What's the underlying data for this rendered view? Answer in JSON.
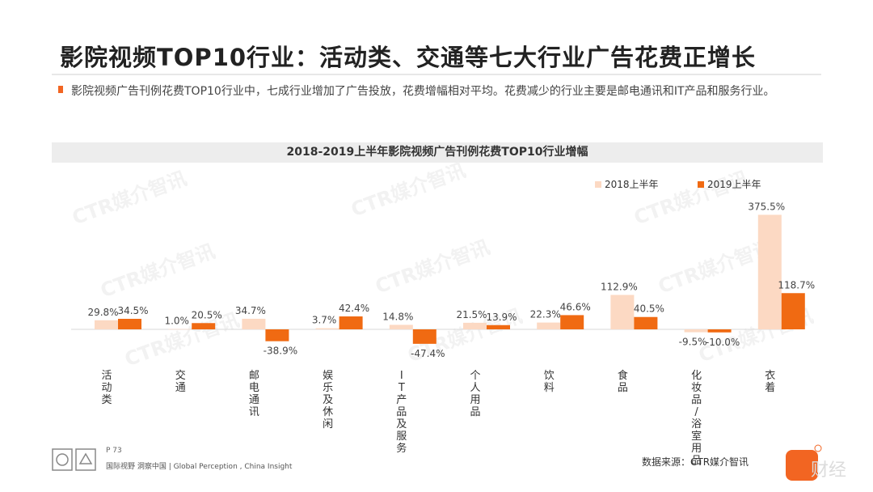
{
  "title": "影院视频TOP10行业：活动类、交通等七大行业广告花费正增长",
  "subtitle": "影院视频广告刊例花费TOP10行业中，七成行业增加了广告投放，花费增幅相对平均。花费减少的行业主要是邮电通讯和IT产品和服务行业。",
  "colors": {
    "accent": "#f26522",
    "series2018": "#fcd9c3",
    "series2019": "#f06a12"
  },
  "chart_data": {
    "type": "bar",
    "title": "2018-2019上半年影院视频广告刊例花费TOP10行业增幅",
    "categories": [
      "活动类",
      "交通",
      "邮电通讯",
      "娱乐及休闲",
      "IT产品及服务",
      "个人用品",
      "饮料",
      "食品",
      "化妆品/浴室用品",
      "衣着"
    ],
    "series": [
      {
        "name": "2018上半年",
        "values": [
          29.8,
          1.0,
          34.7,
          3.7,
          14.8,
          21.5,
          22.3,
          112.9,
          -9.5,
          375.5
        ]
      },
      {
        "name": "2019上半年",
        "values": [
          34.5,
          20.5,
          -38.9,
          42.4,
          -47.4,
          13.9,
          46.6,
          40.5,
          -10.0,
          118.7
        ]
      }
    ],
    "value_suffix": "%",
    "legend_position": "top-right",
    "grid": false
  },
  "watermark": "CTR媒介智讯",
  "footer": {
    "page": "P 73",
    "tagline": "国际视野 洞察中国 | Global Perception , China Insight",
    "source": "数据来源：CTR媒介智讯",
    "brand": "财经"
  }
}
